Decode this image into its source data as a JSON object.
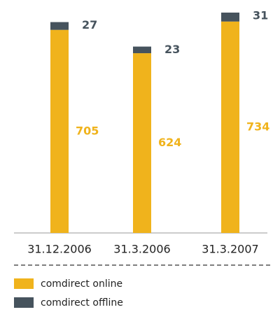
{
  "chart_data": {
    "type": "stacked_bar",
    "categories": [
      "31.12.2006",
      "31.3.2006",
      "31.3.2007"
    ],
    "series": [
      {
        "name": "comdirect online",
        "color": "#f0b31c",
        "values": [
          705,
          624,
          734
        ]
      },
      {
        "name": "comdirect offline",
        "color": "#46535d",
        "values": [
          27,
          23,
          31
        ]
      }
    ],
    "legend": "bottom-left"
  }
}
